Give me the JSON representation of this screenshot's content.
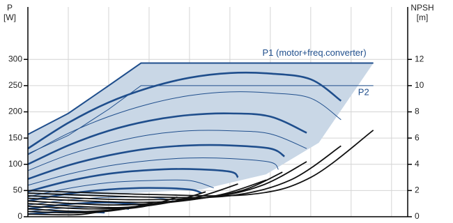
{
  "chart_data": {
    "type": "line",
    "ylabel": [
      "P",
      "[W]"
    ],
    "y2label": [
      "NPSH",
      "[m]"
    ],
    "xlim": [
      0,
      9.4
    ],
    "xticks": [
      0,
      1,
      2,
      3,
      4,
      5,
      6,
      7,
      8,
      9
    ],
    "ylim": [
      0,
      400
    ],
    "yticks": [
      0,
      50,
      100,
      150,
      200,
      250,
      300
    ],
    "y2lim": [
      0,
      16
    ],
    "y2ticks": [
      0,
      2,
      4,
      6,
      8,
      10,
      12
    ],
    "grid": true,
    "series": [
      {
        "kind": "area",
        "name": "P1 (motor+freq.converter)",
        "color": "#1f4e8c",
        "fill": "#c9d7e6",
        "x": [
          0,
          1,
          2,
          2.8,
          4.3,
          5.9,
          7.2,
          8.55
        ],
        "values": [
          157,
          197,
          250,
          293,
          293,
          293,
          293,
          293
        ],
        "lower": [
          35,
          38,
          42,
          46,
          52,
          81,
          141,
          293
        ]
      },
      {
        "name": "P2",
        "color": "#1f4e8c",
        "style": "thin",
        "x": [
          0,
          1,
          2,
          2.8,
          8.55
        ],
        "values": [
          120,
          155,
          205,
          250,
          250
        ]
      },
      {
        "color": "#1f4e8c",
        "style": "thick",
        "x": [
          0,
          1,
          2,
          3,
          4,
          5,
          6,
          7,
          7.75
        ],
        "values": [
          130,
          179,
          218,
          246,
          265,
          274,
          273,
          262,
          221
        ]
      },
      {
        "color": "#1f4e8c",
        "style": "thin",
        "x": [
          0,
          1,
          2,
          3,
          4,
          5,
          6,
          7,
          7.75
        ],
        "values": [
          118,
          159,
          191,
          215,
          231,
          238,
          236,
          226,
          185
        ]
      },
      {
        "color": "#1f4e8c",
        "style": "thick",
        "x": [
          0,
          1,
          2,
          3,
          4,
          5,
          6,
          6.9
        ],
        "values": [
          100,
          136,
          164,
          183,
          194,
          197,
          191,
          160
        ]
      },
      {
        "color": "#1f4e8c",
        "style": "thin",
        "x": [
          0,
          1,
          2,
          3,
          4,
          5,
          6,
          6.9
        ],
        "values": [
          88,
          118,
          140,
          156,
          164,
          164,
          158,
          130
        ]
      },
      {
        "color": "#1f4e8c",
        "style": "thick",
        "x": [
          0,
          1,
          2,
          3,
          4,
          5,
          6,
          6.35
        ],
        "values": [
          72,
          98,
          117,
          130,
          136,
          136,
          130,
          115
        ]
      },
      {
        "color": "#1f4e8c",
        "style": "thin",
        "x": [
          0,
          1,
          2,
          3,
          4,
          5,
          6,
          6.2
        ],
        "values": [
          60,
          81,
          97,
          107,
          112,
          111,
          104,
          90
        ]
      },
      {
        "color": "#1f4e8c",
        "style": "thick",
        "x": [
          0,
          1,
          2,
          3,
          4,
          5,
          5.2
        ],
        "values": [
          48,
          68,
          82,
          89,
          91,
          86,
          75
        ]
      },
      {
        "color": "#1f4e8c",
        "style": "thin",
        "x": [
          0,
          1,
          2,
          3,
          4,
          4.6
        ],
        "values": [
          38,
          54,
          65,
          69,
          69,
          55
        ]
      },
      {
        "color": "#1f4e8c",
        "style": "thick",
        "x": [
          0,
          1,
          2,
          3,
          4,
          4.3
        ],
        "values": [
          30,
          44,
          52,
          55,
          52,
          45
        ]
      },
      {
        "color": "#1f4e8c",
        "style": "thin",
        "x": [
          0,
          1,
          2,
          3,
          3.6
        ],
        "values": [
          22,
          32,
          37,
          37,
          32
        ]
      },
      {
        "color": "#1f4e8c",
        "style": "thick",
        "x": [
          0,
          1,
          2,
          3
        ],
        "values": [
          15,
          24,
          27,
          22
        ]
      },
      {
        "color": "#1f4e8c",
        "style": "thin",
        "x": [
          0,
          1,
          2,
          2.5
        ],
        "values": [
          10,
          17,
          18,
          14
        ]
      },
      {
        "color": "#1f4e8c",
        "style": "thick",
        "x": [
          0,
          1,
          1.9
        ],
        "values": [
          5,
          10,
          8
        ]
      },
      {
        "color": "#111111",
        "style": "npsh",
        "axis": "y2",
        "x": [
          0,
          3,
          5.5,
          7,
          8.55
        ],
        "values": [
          2.0,
          1.7,
          1.7,
          3.0,
          6.6
        ]
      },
      {
        "color": "#111111",
        "style": "npsh",
        "axis": "y2",
        "x": [
          0,
          3,
          5,
          6.5,
          7.75
        ],
        "values": [
          1.8,
          1.5,
          1.6,
          2.8,
          5.4
        ]
      },
      {
        "color": "#111111",
        "style": "npsh",
        "axis": "y2",
        "x": [
          0,
          2.5,
          4.5,
          5.8,
          6.9
        ],
        "values": [
          1.6,
          1.3,
          1.5,
          2.4,
          4.2
        ]
      },
      {
        "color": "#111111",
        "style": "npsh",
        "axis": "y2",
        "x": [
          0,
          2.5,
          4,
          5.3,
          6.3
        ],
        "values": [
          1.4,
          1.1,
          1.3,
          2.0,
          3.4
        ]
      },
      {
        "color": "#111111",
        "style": "npsh",
        "axis": "y2",
        "x": [
          0,
          2,
          3.5,
          4.8,
          5.9
        ],
        "values": [
          1.2,
          0.9,
          1.1,
          1.7,
          2.8
        ]
      },
      {
        "color": "#111111",
        "style": "npsh",
        "axis": "y2",
        "x": [
          0,
          2,
          3,
          4.2,
          5.2
        ],
        "values": [
          1.0,
          0.7,
          0.9,
          1.5,
          2.5
        ]
      },
      {
        "color": "#111111",
        "style": "npsh",
        "axis": "y2",
        "x": [
          0,
          1.5,
          2.5,
          3.5,
          4.4
        ],
        "values": [
          0.8,
          0.6,
          0.7,
          1.1,
          1.9
        ]
      },
      {
        "color": "#111111",
        "style": "npsh",
        "axis": "y2",
        "x": [
          0,
          1.2,
          2,
          2.9,
          3.7
        ],
        "values": [
          0.6,
          0.4,
          0.5,
          0.8,
          1.5
        ]
      },
      {
        "color": "#111111",
        "style": "npsh",
        "axis": "y2",
        "x": [
          0,
          1,
          1.7,
          2.4,
          3.1
        ],
        "values": [
          0.4,
          0.3,
          0.35,
          0.6,
          1.1
        ]
      },
      {
        "color": "#111111",
        "style": "npsh",
        "axis": "y2",
        "x": [
          0,
          0.8,
          1.4,
          2.4
        ],
        "values": [
          0.2,
          0.15,
          0.2,
          0.7
        ]
      }
    ]
  }
}
